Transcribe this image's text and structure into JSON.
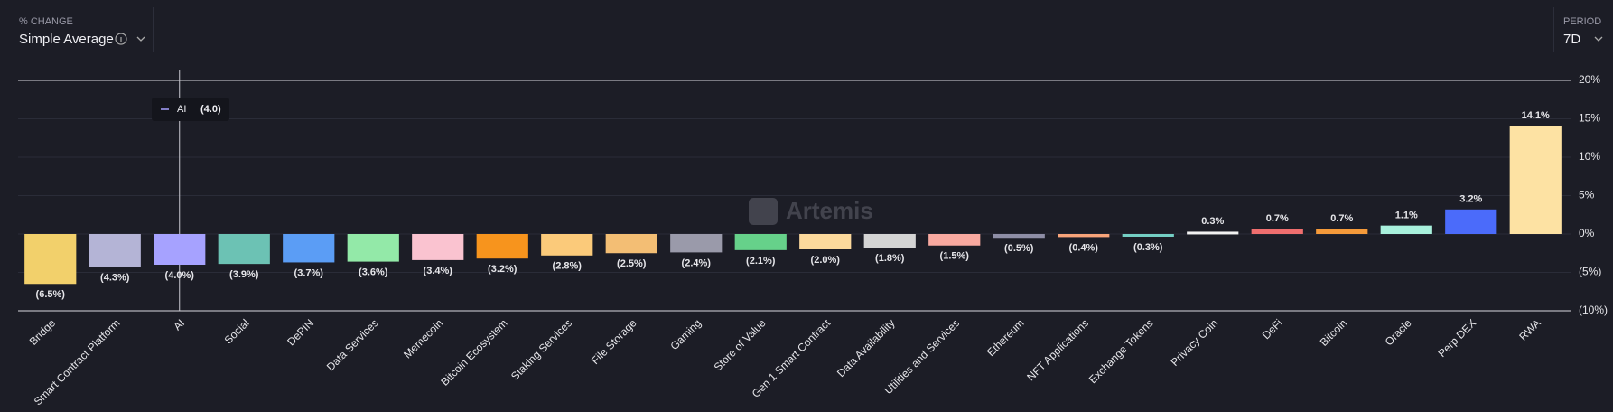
{
  "header": {
    "metric_label": "% CHANGE",
    "metric": "Simple Average",
    "period_label": "PERIOD",
    "period": "7D"
  },
  "watermark": "Artemis",
  "tooltip": {
    "label": "AI",
    "value": "(4.0)"
  },
  "chart_data": {
    "type": "bar",
    "categories": [
      "Bridge",
      "Smart Contract Platform",
      "AI",
      "Social",
      "DePIN",
      "Data Services",
      "Memecoin",
      "Bitcoin Ecosystem",
      "Staking Services",
      "File Storage",
      "Gaming",
      "Store of Value",
      "Gen 1 Smart Contract",
      "Data Availability",
      "Utilities and Services",
      "Ethereum",
      "NFT Applications",
      "Exchange Tokens",
      "Privacy Coin",
      "DeFi",
      "Bitcoin",
      "Oracle",
      "Perp DEX",
      "RWA"
    ],
    "values": [
      -6.5,
      -4.3,
      -4.0,
      -3.9,
      -3.7,
      -3.6,
      -3.4,
      -3.2,
      -2.8,
      -2.5,
      -2.4,
      -2.1,
      -2.0,
      -1.8,
      -1.5,
      -0.5,
      -0.4,
      -0.3,
      0.3,
      0.7,
      0.7,
      1.1,
      3.2,
      14.1
    ],
    "value_labels": [
      "(6.5%)",
      "(4.3%)",
      "(4.0%)",
      "(3.9%)",
      "(3.7%)",
      "(3.6%)",
      "(3.4%)",
      "(3.2%)",
      "(2.8%)",
      "(2.5%)",
      "(2.4%)",
      "(2.1%)",
      "(2.0%)",
      "(1.8%)",
      "(1.5%)",
      "(0.5%)",
      "(0.4%)",
      "(0.3%)",
      "0.3%",
      "0.7%",
      "0.7%",
      "1.1%",
      "3.2%",
      "14.1%"
    ],
    "colors": [
      "#f2d06b",
      "#b4b4d6",
      "#a6a2ff",
      "#6cc2b4",
      "#5b9df5",
      "#93e9a8",
      "#fac3d0",
      "#f7941d",
      "#fbca7a",
      "#f3be74",
      "#9a9aaa",
      "#66d18a",
      "#fcd99c",
      "#d4d4d4",
      "#f8a9a0",
      "#8e8ea6",
      "#f8a47a",
      "#74cfc4",
      "#f2f2f2",
      "#ef6e6e",
      "#f59a3a",
      "#a8f0dc",
      "#4b6bfa",
      "#fde2a3"
    ],
    "ylim": [
      -10,
      20
    ],
    "yticks": [
      {
        "value": 20,
        "label": "20%"
      },
      {
        "value": 15,
        "label": "15%"
      },
      {
        "value": 10,
        "label": "10%"
      },
      {
        "value": 5,
        "label": "5%"
      },
      {
        "value": 0,
        "label": "0%"
      },
      {
        "value": -5,
        "label": "(5%)"
      },
      {
        "value": -10,
        "label": "(10%)"
      }
    ],
    "grid": true
  }
}
